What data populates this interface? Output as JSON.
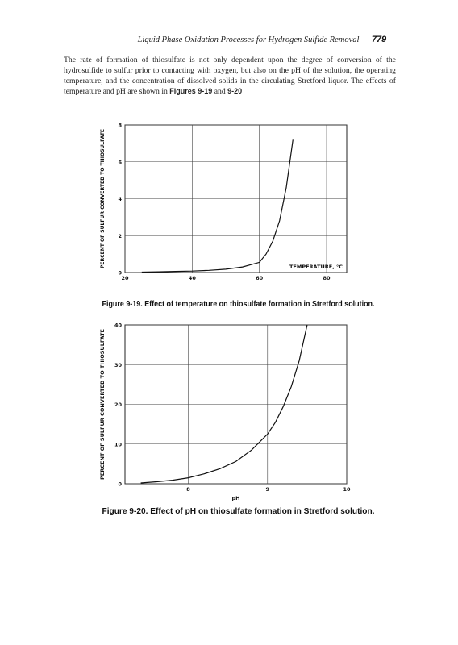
{
  "header": {
    "title": "Liquid Phase Oxidation Processes for Hydrogen Sulfide Removal",
    "page_number": "779"
  },
  "paragraph": {
    "segments": [
      "The rate of formation of thiosulfate is not only dependent upon the degree of conversion of the hydrosulfide to sulfur prior to contacting with oxygen, but also on the pH of the solution, the operating temperature, and the concentration of dissolved solids in the circulating Stretford liquor. The effects of temperature and pH are shown in ",
      "Figures 9-19",
      " and ",
      "9-20"
    ]
  },
  "chart_data": [
    {
      "type": "line",
      "figure_label": "Figure 9-19.",
      "title": "Effect of temperature on thiosulfate formation in Stretford solution.",
      "ylabel": "PERCENT OF SULFUR CONVERTED TO THIOSULFATE",
      "xlabel": "TEMPERATURE, °C",
      "xlabel_position": "inside",
      "x": [
        25,
        30,
        35,
        40,
        45,
        50,
        55,
        60,
        62,
        64,
        66,
        68,
        70
      ],
      "values": [
        0.02,
        0.04,
        0.06,
        0.08,
        0.12,
        0.18,
        0.3,
        0.55,
        1.0,
        1.7,
        2.8,
        4.6,
        7.2
      ],
      "color": "#111111",
      "xlim": [
        20,
        86
      ],
      "ylim": [
        0,
        8
      ],
      "xticks": [
        20,
        40,
        60,
        80
      ],
      "yticks": [
        0,
        2,
        4,
        6,
        8
      ],
      "grid": true
    },
    {
      "type": "line",
      "figure_label": "Figure 9-20.",
      "title": "Effect of pH on thiosulfate formation in Stretford solution.",
      "ylabel": "PERCENT OF SULFUR CONVERTED TO THIOSULFATE",
      "xlabel": "pH",
      "xlabel_position": "below",
      "x": [
        7.4,
        7.6,
        7.8,
        8.0,
        8.2,
        8.4,
        8.6,
        8.8,
        9.0,
        9.1,
        9.2,
        9.3,
        9.4,
        9.5
      ],
      "values": [
        0.2,
        0.5,
        0.9,
        1.5,
        2.5,
        3.8,
        5.6,
        8.5,
        12.5,
        15.5,
        19.5,
        24.5,
        31,
        40
      ],
      "color": "#111111",
      "xlim": [
        7.2,
        10
      ],
      "ylim": [
        0,
        40
      ],
      "xticks": [
        8,
        9,
        10
      ],
      "yticks": [
        0,
        10,
        20,
        30,
        40
      ],
      "grid": true
    }
  ]
}
